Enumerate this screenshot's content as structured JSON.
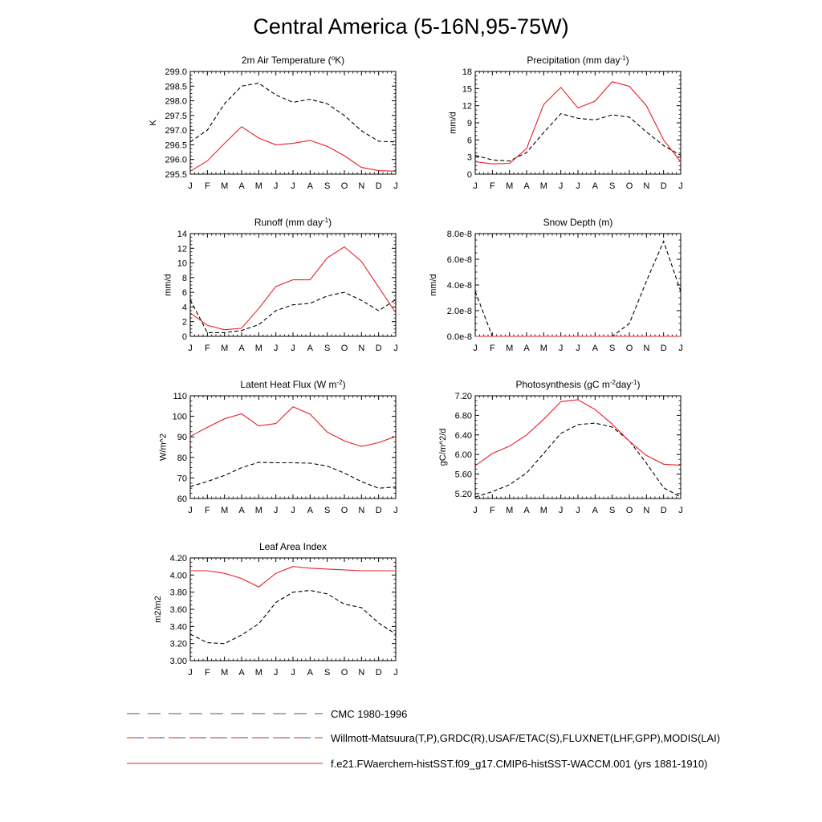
{
  "figure_title": "Central America (5-16N,95-75W)",
  "colors": {
    "model": "#e8202a",
    "obs": "#000000",
    "frame": "#000000"
  },
  "legend": {
    "items": [
      {
        "label": "CMC 1980-1996",
        "style": "dashed",
        "color": "#555555"
      },
      {
        "label": "Willmott-Matsuura(T,P),GRDC(R),USAF/ETAC(S),FLUXNET(LHF,GPP),MODIS(LAI)",
        "style": "dashed-multicolor",
        "color": "#c0303a"
      },
      {
        "label": "f.e21.FWaerchem-histSST.f09_g17.CMIP6-histSST-WACCM.001 (yrs 1881-1910)",
        "style": "solid",
        "color": "#e8202a"
      }
    ]
  },
  "chart_data": [
    {
      "id": "temp",
      "type": "line",
      "title": "2m Air Temperature (",
      "title_sup": "o",
      "title_suffix": "K)",
      "ylabel": "K",
      "x": [
        "J",
        "F",
        "M",
        "A",
        "M",
        "J",
        "J",
        "A",
        "S",
        "O",
        "N",
        "D",
        "J"
      ],
      "ylim": [
        295.5,
        299.0
      ],
      "yticks": [
        295.5,
        296.0,
        296.5,
        297.0,
        297.5,
        298.0,
        298.5,
        299.0
      ],
      "ytick_labels": [
        "295.5",
        "296.0",
        "296.5",
        "297.0",
        "297.5",
        "298.0",
        "298.5",
        "299.0"
      ],
      "series": [
        {
          "style": "dashed",
          "values": [
            296.6,
            297.0,
            297.9,
            298.5,
            298.6,
            298.2,
            297.95,
            298.05,
            297.9,
            297.5,
            296.98,
            296.62,
            296.6
          ]
        },
        {
          "style": "solid",
          "values": [
            295.6,
            295.95,
            296.55,
            297.12,
            296.73,
            296.5,
            296.55,
            296.65,
            296.45,
            296.13,
            295.73,
            295.62,
            295.6
          ]
        }
      ]
    },
    {
      "id": "precip",
      "type": "line",
      "title": "Precipitation (mm day",
      "title_sup": "-1",
      "title_suffix": ")",
      "ylabel": "mm/d",
      "x": [
        "J",
        "F",
        "M",
        "A",
        "M",
        "J",
        "J",
        "A",
        "S",
        "O",
        "N",
        "D",
        "J"
      ],
      "ylim": [
        0,
        18
      ],
      "yticks": [
        0,
        3,
        6,
        9,
        12,
        15,
        18
      ],
      "ytick_labels": [
        "0",
        "3",
        "6",
        "9",
        "12",
        "15",
        "18"
      ],
      "series": [
        {
          "style": "dashed",
          "values": [
            3.3,
            2.5,
            2.3,
            3.8,
            7.3,
            10.6,
            9.8,
            9.5,
            10.4,
            10.0,
            7.4,
            5.0,
            3.3
          ]
        },
        {
          "style": "solid",
          "values": [
            2.2,
            1.8,
            1.9,
            4.5,
            12.2,
            15.2,
            11.6,
            12.8,
            16.2,
            15.4,
            12.0,
            6.0,
            2.2
          ]
        }
      ]
    },
    {
      "id": "runoff",
      "type": "line",
      "title": "Runoff (mm day",
      "title_sup": "-1",
      "title_suffix": ")",
      "ylabel": "mm/d",
      "x": [
        "J",
        "F",
        "M",
        "A",
        "M",
        "J",
        "J",
        "A",
        "S",
        "O",
        "N",
        "D",
        "J"
      ],
      "ylim": [
        0,
        14
      ],
      "yticks": [
        0,
        2,
        4,
        6,
        8,
        10,
        12,
        14
      ],
      "ytick_labels": [
        "0",
        "2",
        "4",
        "6",
        "8",
        "10",
        "12",
        "14"
      ],
      "series": [
        {
          "style": "dashed",
          "values": [
            5.0,
            0.5,
            0.5,
            0.8,
            1.6,
            3.5,
            4.3,
            4.5,
            5.5,
            6.0,
            4.9,
            3.5,
            5.0
          ]
        },
        {
          "style": "solid",
          "values": [
            3.2,
            1.5,
            0.9,
            1.1,
            3.8,
            6.8,
            7.7,
            7.7,
            10.7,
            12.2,
            10.2,
            6.7,
            3.2
          ]
        }
      ]
    },
    {
      "id": "snow",
      "type": "line",
      "title": "Snow Depth (m)",
      "title_sup": "",
      "title_suffix": "",
      "ylabel": "mm/d",
      "x": [
        "J",
        "F",
        "M",
        "A",
        "M",
        "J",
        "J",
        "A",
        "S",
        "O",
        "N",
        "D",
        "J"
      ],
      "ylim": [
        0,
        8e-08
      ],
      "yticks": [
        0,
        2e-08,
        4e-08,
        6e-08,
        8e-08
      ],
      "ytick_labels": [
        "0.0e-8",
        "2.0e-8",
        "4.0e-8",
        "6.0e-8",
        "8.0e-8"
      ],
      "series": [
        {
          "style": "dashed",
          "values": [
            3.5e-08,
            0,
            0,
            0,
            0,
            0,
            0,
            0,
            0,
            1e-08,
            4.3e-08,
            7.4e-08,
            3.5e-08
          ]
        },
        {
          "style": "solid",
          "values": [
            0,
            0,
            0,
            0,
            0,
            0,
            0,
            0,
            0,
            0,
            0,
            0,
            0
          ]
        }
      ]
    },
    {
      "id": "lhf",
      "type": "line",
      "title": "Latent Heat Flux (W m",
      "title_sup": "-2",
      "title_suffix": ")",
      "ylabel": "W/m^2",
      "x": [
        "J",
        "F",
        "M",
        "A",
        "M",
        "J",
        "J",
        "A",
        "S",
        "O",
        "N",
        "D",
        "J"
      ],
      "ylim": [
        60,
        110
      ],
      "yticks": [
        60,
        70,
        80,
        90,
        100,
        110
      ],
      "ytick_labels": [
        "60",
        "70",
        "80",
        "90",
        "100",
        "110"
      ],
      "series": [
        {
          "style": "dashed",
          "values": [
            65.8,
            68.3,
            71.2,
            75.0,
            77.6,
            77.4,
            77.4,
            77.2,
            75.8,
            72.4,
            68.2,
            65.0,
            65.6
          ]
        },
        {
          "style": "solid",
          "values": [
            90.2,
            94.6,
            98.8,
            101.2,
            95.3,
            96.5,
            104.7,
            101.0,
            92.3,
            88.0,
            85.3,
            87.2,
            90.2
          ]
        }
      ]
    },
    {
      "id": "gpp",
      "type": "line",
      "title": "Photosynthesis (gC m",
      "title_sup": "-2",
      "title_suffix": "day",
      "title_sup2": "-1",
      "title_suffix2": ")",
      "ylabel": "gC/m^2/d",
      "x": [
        "J",
        "F",
        "M",
        "A",
        "M",
        "J",
        "J",
        "A",
        "S",
        "O",
        "N",
        "D",
        "J"
      ],
      "ylim": [
        5.1,
        7.2
      ],
      "yticks": [
        5.2,
        5.6,
        6.0,
        6.4,
        6.8,
        7.2
      ],
      "ytick_labels": [
        "5.20",
        "5.60",
        "6.00",
        "6.40",
        "6.80",
        "7.20"
      ],
      "series": [
        {
          "style": "dashed",
          "values": [
            5.13,
            5.24,
            5.38,
            5.62,
            6.02,
            6.43,
            6.61,
            6.64,
            6.56,
            6.28,
            5.82,
            5.32,
            5.13
          ]
        },
        {
          "style": "solid",
          "values": [
            5.77,
            6.02,
            6.17,
            6.4,
            6.72,
            7.08,
            7.12,
            6.92,
            6.62,
            6.27,
            5.98,
            5.8,
            5.78
          ]
        }
      ]
    },
    {
      "id": "lai",
      "type": "line",
      "title": "Leaf Area Index",
      "title_sup": "",
      "title_suffix": "",
      "ylabel": "m2/m2",
      "x": [
        "J",
        "F",
        "M",
        "A",
        "M",
        "J",
        "J",
        "A",
        "S",
        "O",
        "N",
        "D",
        "J"
      ],
      "ylim": [
        3.0,
        4.2
      ],
      "yticks": [
        3.0,
        3.2,
        3.4,
        3.6,
        3.8,
        4.0,
        4.2
      ],
      "ytick_labels": [
        "3.00",
        "3.20",
        "3.40",
        "3.60",
        "3.80",
        "4.00",
        "4.20"
      ],
      "series": [
        {
          "style": "dashed",
          "values": [
            3.31,
            3.21,
            3.2,
            3.3,
            3.43,
            3.68,
            3.8,
            3.82,
            3.78,
            3.66,
            3.62,
            3.44,
            3.31
          ]
        },
        {
          "style": "solid",
          "values": [
            4.05,
            4.05,
            4.02,
            3.96,
            3.86,
            4.02,
            4.1,
            4.08,
            4.07,
            4.06,
            4.05,
            4.05,
            4.05
          ]
        }
      ]
    }
  ]
}
